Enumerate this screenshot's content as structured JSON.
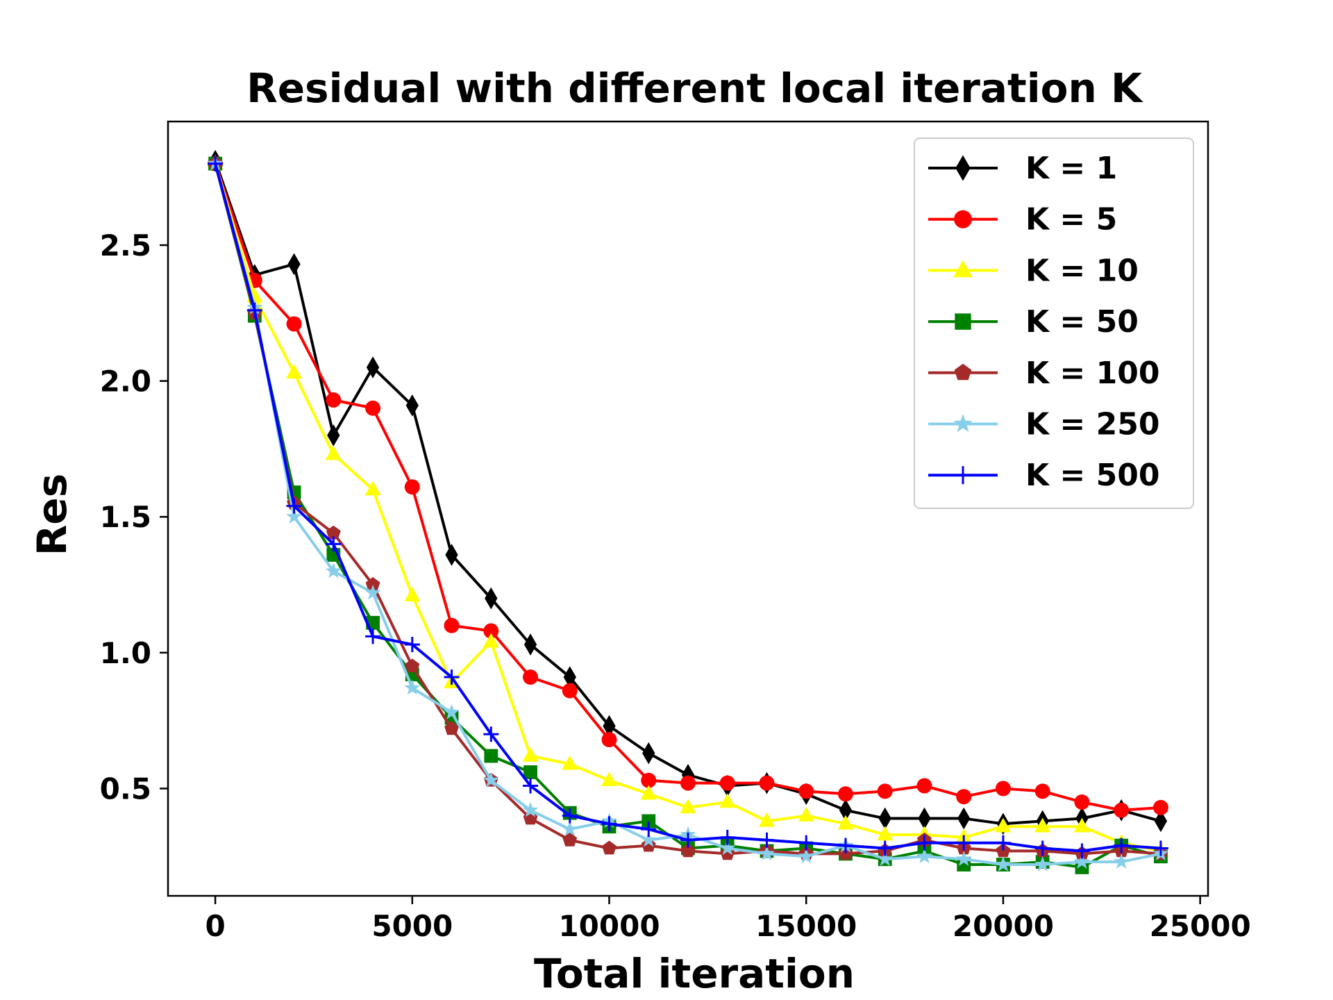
{
  "chart_data": {
    "type": "line",
    "title": "Residual with different local iteration K",
    "xlabel": "Total iteration",
    "ylabel": "Res",
    "xlim": [
      -1200,
      25200
    ],
    "ylim": [
      0.105,
      2.955
    ],
    "xticks": [
      0,
      5000,
      10000,
      15000,
      20000,
      25000
    ],
    "xtick_labels": [
      "0",
      "5000",
      "10000",
      "15000",
      "20000",
      "25000"
    ],
    "yticks": [
      0.5,
      1.0,
      1.5,
      2.0,
      2.5
    ],
    "ytick_labels": [
      "0.5",
      "1.0",
      "1.5",
      "2.0",
      "2.5"
    ],
    "grid": false,
    "legend_position": "top-right",
    "x": [
      0,
      1000,
      2000,
      3000,
      4000,
      5000,
      6000,
      7000,
      8000,
      9000,
      10000,
      11000,
      12000,
      13000,
      14000,
      15000,
      16000,
      17000,
      18000,
      19000,
      20000,
      21000,
      22000,
      23000,
      24000
    ],
    "series": [
      {
        "name": "K = 1",
        "color": "#000000",
        "marker": "diamond",
        "values": [
          2.81,
          2.39,
          2.43,
          1.8,
          2.05,
          1.91,
          1.36,
          1.2,
          1.03,
          0.91,
          0.73,
          0.63,
          0.55,
          0.51,
          0.52,
          0.48,
          0.42,
          0.39,
          0.39,
          0.39,
          0.37,
          0.38,
          0.39,
          0.42,
          0.38
        ]
      },
      {
        "name": "K = 5",
        "color": "#ff0000",
        "marker": "circle",
        "values": [
          2.8,
          2.37,
          2.21,
          1.93,
          1.9,
          1.61,
          1.1,
          1.08,
          0.91,
          0.86,
          0.68,
          0.53,
          0.52,
          0.52,
          0.52,
          0.49,
          0.48,
          0.49,
          0.51,
          0.47,
          0.5,
          0.49,
          0.45,
          0.42,
          0.43
        ]
      },
      {
        "name": "K = 10",
        "color": "#ffff00",
        "marker": "triangle",
        "values": [
          2.8,
          2.31,
          2.03,
          1.73,
          1.6,
          1.21,
          0.89,
          1.04,
          0.62,
          0.59,
          0.53,
          0.48,
          0.43,
          0.45,
          0.38,
          0.4,
          0.37,
          0.33,
          0.33,
          0.32,
          0.36,
          0.36,
          0.36,
          0.3,
          0.27
        ]
      },
      {
        "name": "K = 50",
        "color": "#008000",
        "marker": "square",
        "values": [
          2.8,
          2.24,
          1.59,
          1.36,
          1.11,
          0.92,
          0.76,
          0.62,
          0.56,
          0.41,
          0.36,
          0.38,
          0.28,
          0.29,
          0.27,
          0.28,
          0.26,
          0.24,
          0.27,
          0.22,
          0.22,
          0.23,
          0.21,
          0.29,
          0.25
        ]
      },
      {
        "name": "K = 100",
        "color": "#a52a2a",
        "marker": "pentagon",
        "values": [
          2.8,
          2.25,
          1.55,
          1.44,
          1.25,
          0.95,
          0.72,
          0.53,
          0.39,
          0.31,
          0.28,
          0.29,
          0.27,
          0.26,
          0.27,
          0.26,
          0.26,
          0.27,
          0.31,
          0.28,
          0.27,
          0.27,
          0.26,
          0.27,
          0.26
        ]
      },
      {
        "name": "K = 250",
        "color": "#87ceeb",
        "marker": "star",
        "values": [
          2.8,
          2.27,
          1.5,
          1.3,
          1.22,
          0.87,
          0.78,
          0.53,
          0.42,
          0.35,
          0.38,
          0.31,
          0.33,
          0.28,
          0.26,
          0.25,
          0.29,
          0.24,
          0.25,
          0.24,
          0.22,
          0.22,
          0.23,
          0.23,
          0.26
        ]
      },
      {
        "name": "K = 500",
        "color": "#0000ff",
        "marker": "plus",
        "values": [
          2.8,
          2.26,
          1.54,
          1.4,
          1.06,
          1.03,
          0.91,
          0.7,
          0.51,
          0.4,
          0.37,
          0.35,
          0.31,
          0.32,
          0.31,
          0.3,
          0.29,
          0.28,
          0.3,
          0.3,
          0.3,
          0.28,
          0.27,
          0.29,
          0.28
        ]
      }
    ]
  }
}
